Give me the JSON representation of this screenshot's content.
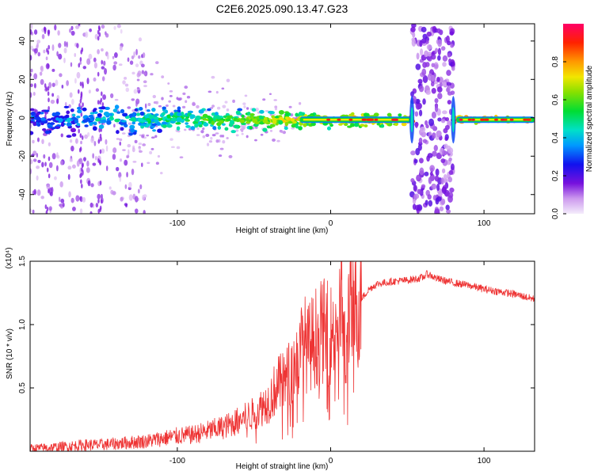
{
  "title": "C2E6.2025.090.13.47.G23",
  "colors": {
    "snr_line": "#ee3333",
    "background": "#ffffff",
    "axis": "#000000"
  },
  "chart_data": [
    {
      "type": "heatmap",
      "title": "C2E6.2025.090.13.47.G23",
      "xlabel": "Height of straight line (km)",
      "ylabel": "Frequency (Hz)",
      "xlim": [
        -196,
        133
      ],
      "ylim": [
        -50,
        49
      ],
      "x_ticks": [
        -100,
        0,
        100
      ],
      "y_ticks": [
        -40,
        -20,
        0,
        20,
        40
      ],
      "colorbar": {
        "label": "Normalized spectral amplitude",
        "range": [
          0,
          1
        ],
        "ticks": [
          0.0,
          0.2,
          0.4,
          0.6,
          0.8
        ]
      },
      "features": [
        {
          "feature": "signal ridge",
          "x_range": [
            -196,
            133
          ],
          "frequency_hz": -1
        },
        {
          "feature": "broadband noise band",
          "x_range": [
            53,
            80
          ],
          "frequency_range_hz": [
            -50,
            49
          ]
        },
        {
          "feature": "broadband noise",
          "x_range": [
            -196,
            -140
          ],
          "frequency_range_hz": [
            -50,
            49
          ]
        }
      ],
      "grid": false
    },
    {
      "type": "line",
      "xlabel": "Height of straight line (km)",
      "ylabel": "SNR (10 * v/v)",
      "y_multiplier": "(x10⁴)",
      "xlim": [
        -196,
        133
      ],
      "ylim": [
        0,
        1.5
      ],
      "x_ticks": [
        -100,
        0,
        100
      ],
      "y_ticks": [
        0.5,
        1.0,
        1.5
      ],
      "series": [
        {
          "x": [
            -196,
            -180,
            -170,
            -160,
            -150,
            -140,
            -130,
            -120,
            -110,
            -100,
            -90,
            -80,
            -70,
            -60,
            -50,
            -40,
            -35,
            -30,
            -25,
            -20,
            -18,
            -15,
            -10,
            -5,
            0,
            5,
            8,
            10,
            11,
            12,
            14,
            16,
            18,
            20,
            25,
            30,
            40,
            50,
            60,
            63,
            70,
            80,
            90,
            100,
            110,
            120,
            133
          ],
          "y": [
            0.02,
            0.03,
            0.04,
            0.05,
            0.05,
            0.06,
            0.07,
            0.08,
            0.1,
            0.12,
            0.13,
            0.16,
            0.19,
            0.24,
            0.3,
            0.4,
            0.52,
            0.55,
            0.65,
            0.75,
            0.9,
            0.8,
            0.9,
            0.95,
            0.92,
            1.05,
            1.15,
            0.55,
            1.0,
            1.2,
            1.05,
            1.1,
            1.15,
            1.2,
            1.28,
            1.32,
            1.34,
            1.35,
            1.37,
            1.4,
            1.36,
            1.33,
            1.31,
            1.28,
            1.26,
            1.24,
            1.2
          ]
        }
      ],
      "grid": false
    }
  ]
}
